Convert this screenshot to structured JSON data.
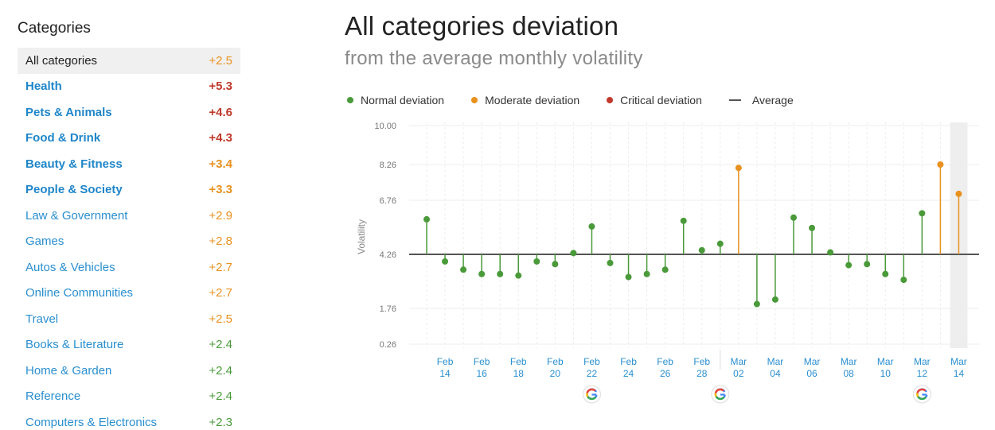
{
  "sidebar": {
    "title": "Categories",
    "items": [
      {
        "label": "All categories",
        "value": "+2.5",
        "value_color": "#e8911f",
        "active": true,
        "bold": false
      },
      {
        "label": "Health",
        "value": "+5.3",
        "value_color": "#c0392b",
        "active": false,
        "bold": true
      },
      {
        "label": "Pets & Animals",
        "value": "+4.6",
        "value_color": "#c0392b",
        "active": false,
        "bold": true
      },
      {
        "label": "Food & Drink",
        "value": "+4.3",
        "value_color": "#c0392b",
        "active": false,
        "bold": true
      },
      {
        "label": "Beauty & Fitness",
        "value": "+3.4",
        "value_color": "#e8911f",
        "active": false,
        "bold": true
      },
      {
        "label": "People & Society",
        "value": "+3.3",
        "value_color": "#e8911f",
        "active": false,
        "bold": true
      },
      {
        "label": "Law & Government",
        "value": "+2.9",
        "value_color": "#e8911f",
        "active": false,
        "bold": false
      },
      {
        "label": "Games",
        "value": "+2.8",
        "value_color": "#e8911f",
        "active": false,
        "bold": false
      },
      {
        "label": "Autos & Vehicles",
        "value": "+2.7",
        "value_color": "#e8911f",
        "active": false,
        "bold": false
      },
      {
        "label": "Online Communities",
        "value": "+2.7",
        "value_color": "#e8911f",
        "active": false,
        "bold": false
      },
      {
        "label": "Travel",
        "value": "+2.5",
        "value_color": "#e8911f",
        "active": false,
        "bold": false
      },
      {
        "label": "Books & Literature",
        "value": "+2.4",
        "value_color": "#4a9a3a",
        "active": false,
        "bold": false
      },
      {
        "label": "Home & Garden",
        "value": "+2.4",
        "value_color": "#4a9a3a",
        "active": false,
        "bold": false
      },
      {
        "label": "Reference",
        "value": "+2.4",
        "value_color": "#4a9a3a",
        "active": false,
        "bold": false
      },
      {
        "label": "Computers & Electronics",
        "value": "+2.3",
        "value_color": "#4a9a3a",
        "active": false,
        "bold": false
      }
    ]
  },
  "legend": {
    "normal": "Normal deviation",
    "moderate": "Moderate deviation",
    "critical": "Critical deviation",
    "average": "Average"
  },
  "colors": {
    "normal": "#4a9a3a",
    "moderate": "#e8911f",
    "critical": "#c0392b",
    "average": "#555555"
  },
  "chart_data": {
    "type": "scatter",
    "title": "All categories deviation",
    "subtitle": "from the average monthly volatility",
    "ylabel": "Volatility",
    "xlabel": "",
    "ylim": [
      0,
      10
    ],
    "average": 4.26,
    "y_ticks": [
      "10.00",
      "8.26",
      "6.76",
      "4.26",
      "1.76",
      "0.26"
    ],
    "x_ticks": [
      {
        "month": "Feb",
        "day": "14"
      },
      {
        "month": "Feb",
        "day": "16"
      },
      {
        "month": "Feb",
        "day": "18"
      },
      {
        "month": "Feb",
        "day": "20"
      },
      {
        "month": "Feb",
        "day": "22"
      },
      {
        "month": "Feb",
        "day": "24"
      },
      {
        "month": "Feb",
        "day": "26"
      },
      {
        "month": "Feb",
        "day": "28"
      },
      {
        "month": "Mar",
        "day": "02"
      },
      {
        "month": "Mar",
        "day": "04"
      },
      {
        "month": "Mar",
        "day": "06"
      },
      {
        "month": "Mar",
        "day": "08"
      },
      {
        "month": "Mar",
        "day": "10"
      },
      {
        "month": "Mar",
        "day": "12"
      },
      {
        "month": "Mar",
        "day": "14"
      }
    ],
    "x": [
      "Feb 13",
      "Feb 14",
      "Feb 15",
      "Feb 16",
      "Feb 17",
      "Feb 18",
      "Feb 19",
      "Feb 20",
      "Feb 21",
      "Feb 22",
      "Feb 23",
      "Feb 24",
      "Feb 25",
      "Feb 26",
      "Feb 27",
      "Feb 28",
      "Mar 01",
      "Mar 02",
      "Mar 03",
      "Mar 04",
      "Mar 05",
      "Mar 06",
      "Mar 07",
      "Mar 08",
      "Mar 09",
      "Mar 10",
      "Mar 11",
      "Mar 12",
      "Mar 13",
      "Mar 14"
    ],
    "values": [
      5.88,
      3.93,
      3.55,
      3.35,
      3.35,
      3.28,
      3.93,
      3.81,
      4.32,
      5.55,
      3.86,
      3.21,
      3.35,
      3.55,
      5.81,
      4.45,
      4.75,
      8.12,
      1.96,
      2.17,
      5.96,
      5.48,
      4.35,
      3.76,
      3.81,
      3.35,
      3.08,
      6.16,
      8.26,
      7.03
    ],
    "levels": [
      "normal",
      "normal",
      "normal",
      "normal",
      "normal",
      "normal",
      "normal",
      "normal",
      "normal",
      "normal",
      "normal",
      "normal",
      "normal",
      "normal",
      "normal",
      "normal",
      "normal",
      "moderate",
      "normal",
      "normal",
      "normal",
      "normal",
      "normal",
      "normal",
      "normal",
      "normal",
      "normal",
      "normal",
      "moderate",
      "moderate"
    ],
    "google_update_dates": [
      "Feb 22",
      "Mar 01",
      "Mar 12"
    ],
    "highlighted_date": "Mar 14"
  }
}
